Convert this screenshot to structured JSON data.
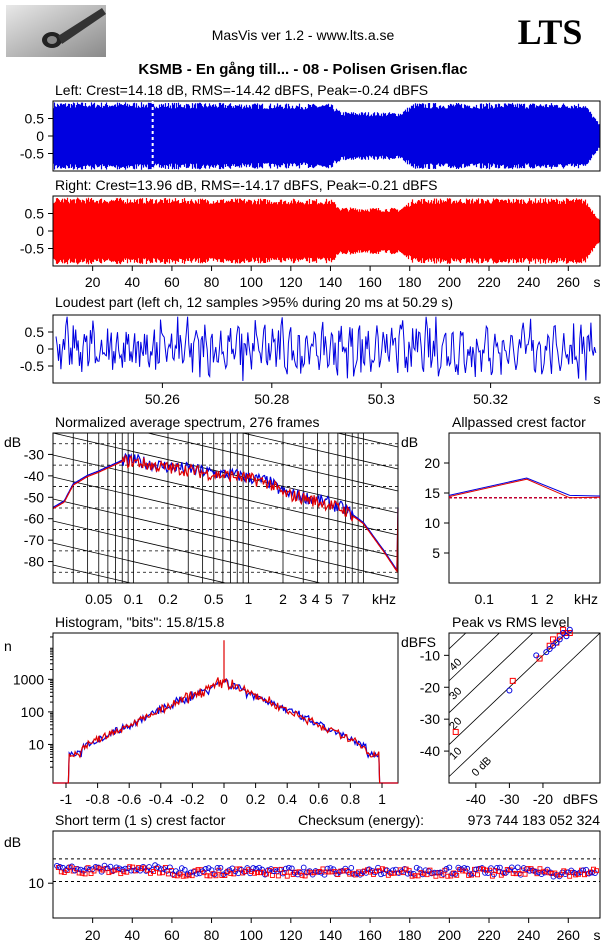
{
  "header": {
    "app_title": "MasVis ver 1.2 - www.lts.a.se",
    "logo_text": "LTS",
    "track_title": "KSMB - En gång till... - 08 - Polisen Grisen.flac"
  },
  "colors": {
    "left": "#0000e0",
    "right": "#ff0000",
    "axis": "#000000"
  },
  "chart_data": [
    {
      "id": "left-waveform",
      "type": "area",
      "title": "Left: Crest=14.18 dB, RMS=-14.42 dBFS, Peak=-0.24 dBFS",
      "yticks": [
        "0.5",
        "0",
        "-0.5"
      ],
      "ylim": [
        -1,
        1
      ],
      "xlim": [
        0,
        276
      ],
      "marker_at_s": 50.29,
      "envelope": [
        {
          "t": 0,
          "amp": 0.97
        },
        {
          "t": 40,
          "amp": 0.97
        },
        {
          "t": 140,
          "amp": 0.92
        },
        {
          "t": 145,
          "amp": 0.7
        },
        {
          "t": 175,
          "amp": 0.68
        },
        {
          "t": 182,
          "amp": 0.95
        },
        {
          "t": 268,
          "amp": 0.95
        },
        {
          "t": 276,
          "amp": 0.3
        }
      ]
    },
    {
      "id": "right-waveform",
      "type": "area",
      "title": "Right: Crest=13.96 dB, RMS=-14.17 dBFS, Peak=-0.21 dBFS",
      "yticks": [
        "0.5",
        "0",
        "-0.5"
      ],
      "ylim": [
        -1,
        1
      ],
      "xlim": [
        0,
        276
      ],
      "xticks": [
        "20",
        "40",
        "60",
        "80",
        "100",
        "120",
        "140",
        "160",
        "180",
        "200",
        "220",
        "240",
        "260",
        "s"
      ],
      "envelope": [
        {
          "t": 0,
          "amp": 0.96
        },
        {
          "t": 140,
          "amp": 0.92
        },
        {
          "t": 145,
          "amp": 0.68
        },
        {
          "t": 175,
          "amp": 0.66
        },
        {
          "t": 182,
          "amp": 0.94
        },
        {
          "t": 268,
          "amp": 0.94
        },
        {
          "t": 276,
          "amp": 0.3
        }
      ]
    },
    {
      "id": "loudest-part",
      "type": "line",
      "title": "Loudest part (left  ch, 12 samples >95% during 20 ms at 50.29 s)",
      "yticks": [
        "0.5",
        "0",
        "-0.5"
      ],
      "ylim": [
        -1,
        1
      ],
      "xlim": [
        50.24,
        50.34
      ],
      "xticks": [
        "50.26",
        "50.28",
        "50.3",
        "50.32",
        "s"
      ]
    },
    {
      "id": "spectrum",
      "type": "line",
      "title": "Normalized average spectrum, 276 frames",
      "ylabel": "dB",
      "yticks": [
        "-30",
        "-40",
        "-50",
        "-60",
        "-70",
        "-80"
      ],
      "ylim": [
        -90,
        -20
      ],
      "xlim_khz": [
        0.02,
        20
      ],
      "xticks": [
        "0.05",
        "0.1",
        "0.2",
        "0.5",
        "1",
        "2",
        "3",
        "4",
        "5",
        "7",
        "kHz"
      ],
      "points": [
        {
          "f": 0.02,
          "db": -55
        },
        {
          "f": 0.025,
          "db": -52
        },
        {
          "f": 0.03,
          "db": -44
        },
        {
          "f": 0.04,
          "db": -40
        },
        {
          "f": 0.05,
          "db": -38
        },
        {
          "f": 0.06,
          "db": -36
        },
        {
          "f": 0.08,
          "db": -33
        },
        {
          "f": 0.1,
          "db": -33
        },
        {
          "f": 0.15,
          "db": -35
        },
        {
          "f": 0.2,
          "db": -36
        },
        {
          "f": 0.3,
          "db": -37
        },
        {
          "f": 0.5,
          "db": -39
        },
        {
          "f": 0.8,
          "db": -40
        },
        {
          "f": 1,
          "db": -41
        },
        {
          "f": 1.5,
          "db": -43
        },
        {
          "f": 2,
          "db": -48
        },
        {
          "f": 3,
          "db": -50
        },
        {
          "f": 5,
          "db": -53
        },
        {
          "f": 7,
          "db": -56
        },
        {
          "f": 10,
          "db": -62
        },
        {
          "f": 15,
          "db": -75
        },
        {
          "f": 20,
          "db": -85
        }
      ]
    },
    {
      "id": "allpassed-crest",
      "type": "line",
      "title": "Allpassed crest factor",
      "ylabel": "dB",
      "yticks": [
        "20",
        "15",
        "10",
        "5"
      ],
      "ylim": [
        0,
        25
      ],
      "xticks": [
        "0.1",
        "1",
        "2",
        "kHz"
      ],
      "reference_db": 14.2,
      "series": [
        {
          "name": "left",
          "points": [
            {
              "f": 0.02,
              "db": 14.6
            },
            {
              "f": 0.7,
              "db": 17.5
            },
            {
              "f": 5,
              "db": 14.6
            },
            {
              "f": 20,
              "db": 14.5
            }
          ]
        },
        {
          "name": "right",
          "points": [
            {
              "f": 0.02,
              "db": 14.4
            },
            {
              "f": 0.7,
              "db": 17.3
            },
            {
              "f": 5,
              "db": 14.2
            },
            {
              "f": 20,
              "db": 14.3
            }
          ]
        }
      ]
    },
    {
      "id": "histogram",
      "type": "line",
      "title": "Histogram, \"bits\": 15.8/15.8",
      "ylabel": "n",
      "yticks": [
        "1000",
        "100",
        "10"
      ],
      "xticks": [
        "-1",
        "-0.8",
        "-0.6",
        "-0.4",
        "-0.2",
        "0",
        "0.2",
        "0.4",
        "0.6",
        "0.8",
        "1"
      ],
      "xlim": [
        -1,
        1
      ],
      "peak_log10": 2.95,
      "spike_log10": 4.2
    },
    {
      "id": "peak-vs-rms",
      "type": "scatter",
      "title": "Peak vs RMS level",
      "ylabel": "dBFS",
      "xlabel": "dBFS",
      "yticks": [
        "-10",
        "-20",
        "-30",
        "-40"
      ],
      "xticks": [
        "-40",
        "-30",
        "-20"
      ],
      "ylim": [
        -50,
        -3
      ],
      "xlim": [
        -48,
        -3
      ],
      "crest_lines": [
        "40",
        "30",
        "20",
        "10",
        "0 dB"
      ],
      "left_points": [
        {
          "rms": -30,
          "peak": -21
        },
        {
          "rms": -22,
          "peak": -10
        },
        {
          "rms": -18,
          "peak": -8
        },
        {
          "rms": -16,
          "peak": -6
        },
        {
          "rms": -14,
          "peak": -3
        },
        {
          "rms": -13,
          "peak": -4
        },
        {
          "rms": -17,
          "peak": -7
        },
        {
          "rms": -15,
          "peak": -5
        },
        {
          "rms": -19,
          "peak": -9
        },
        {
          "rms": -12,
          "peak": -2
        }
      ],
      "right_points": [
        {
          "rms": -46,
          "peak": -34
        },
        {
          "rms": -29,
          "peak": -18
        },
        {
          "rms": -21,
          "peak": -11
        },
        {
          "rms": -17,
          "peak": -5
        },
        {
          "rms": -15,
          "peak": -4
        },
        {
          "rms": -14,
          "peak": -2
        },
        {
          "rms": -16,
          "peak": -6
        },
        {
          "rms": -13,
          "peak": -3
        },
        {
          "rms": -18,
          "peak": -7
        },
        {
          "rms": -12,
          "peak": -3
        }
      ]
    },
    {
      "id": "short-term-crest",
      "type": "scatter",
      "title": "Short term (1 s) crest factor",
      "checksum_label": "Checksum (energy):",
      "checksum_value": "973 744 183 052 324",
      "ylabel": "dB",
      "yticks": [
        "10"
      ],
      "ylim": [
        0,
        25
      ],
      "xlim": [
        0,
        276
      ],
      "xticks": [
        "20",
        "40",
        "60",
        "80",
        "100",
        "120",
        "140",
        "160",
        "180",
        "200",
        "220",
        "240",
        "260",
        "s"
      ],
      "reference_lines_db": [
        10.5,
        17
      ],
      "mean_db": 13.5
    }
  ]
}
